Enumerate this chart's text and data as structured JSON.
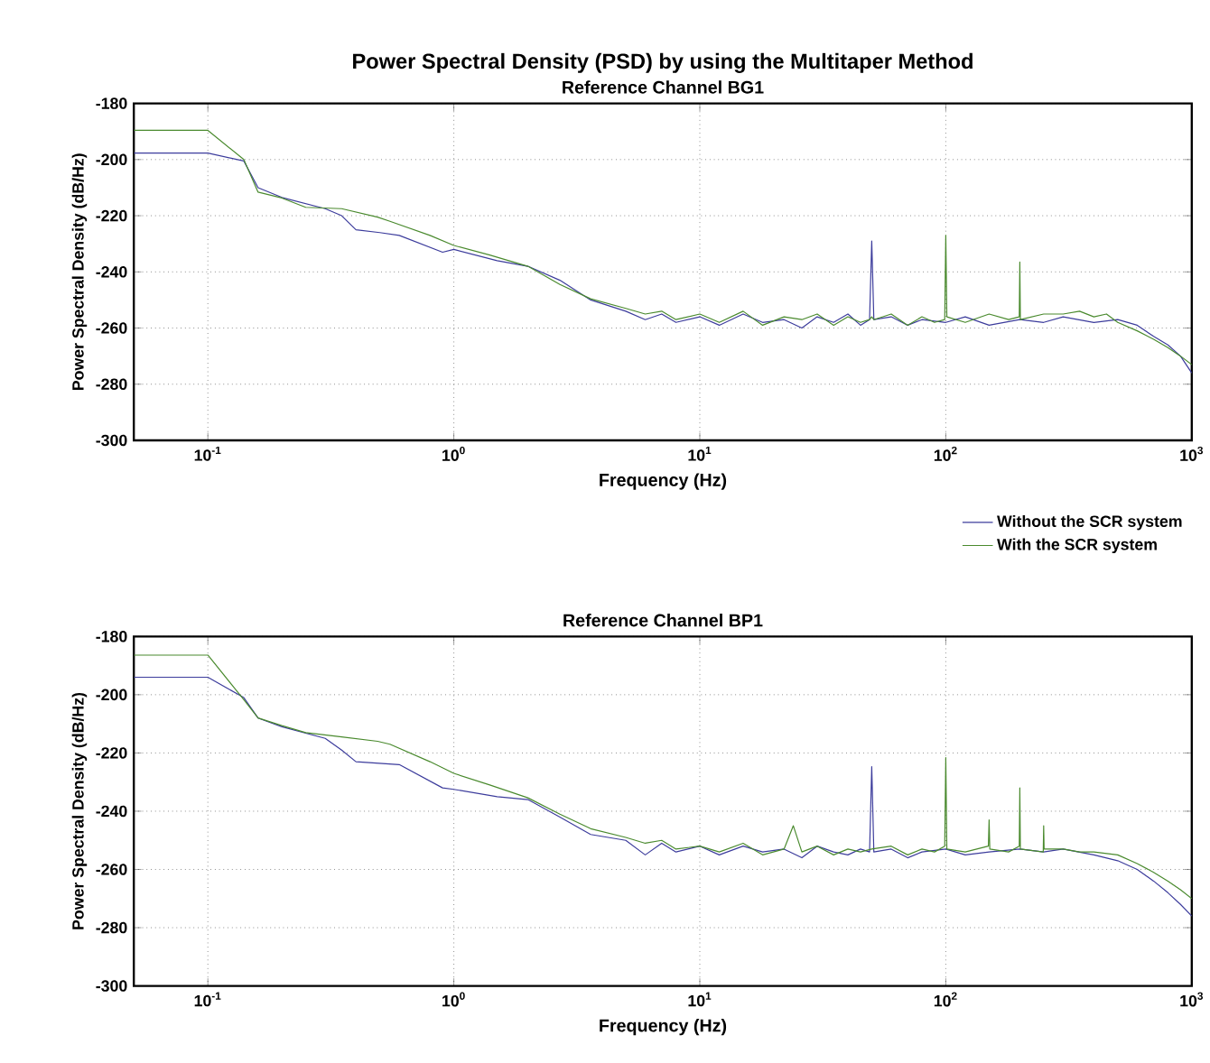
{
  "chart_data": [
    {
      "type": "line",
      "title": "Power Spectral Density (PSD) by using the Multitaper Method",
      "subtitle": "Reference Channel BG1",
      "xlabel": "Frequency (Hz)",
      "ylabel": "Power Spectral Density (dB/Hz)",
      "log": "x",
      "grid": true,
      "legend": "bottom right",
      "xlim": [
        0.05,
        1000
      ],
      "ylim": [
        -300,
        -180
      ],
      "xticks": [
        {
          "value": 0.1,
          "label": "10$^{-1}$"
        },
        {
          "value": 1,
          "label": "10$^{0}$"
        },
        {
          "value": 10,
          "label": "10$^{1}$"
        },
        {
          "value": 100,
          "label": "10$^{2}$"
        },
        {
          "value": 1000,
          "label": "10$^{3}$"
        }
      ],
      "yticks": [
        -300,
        -280,
        -260,
        -240,
        -220,
        -200,
        -180
      ],
      "series": [
        {
          "name": "Without the SCR system",
          "color": "#3c3c9c",
          "x": [
            0.05,
            0.1,
            0.14,
            0.16,
            0.2,
            0.3,
            0.35,
            0.4,
            0.5,
            0.6,
            0.9,
            1.0,
            1.5,
            2.0,
            2.7,
            3.6,
            5,
            6,
            7,
            8,
            10,
            12,
            15,
            18,
            22,
            26,
            30,
            35,
            40,
            45,
            49,
            50,
            51,
            60,
            70,
            80,
            100,
            120,
            150,
            200,
            250,
            300,
            400,
            500,
            600,
            700,
            800,
            900,
            1000
          ],
          "values": [
            -197.7,
            -197.7,
            -200.5,
            -210,
            -213.5,
            -217.5,
            -220,
            -225,
            -226,
            -227,
            -233,
            -232,
            -236,
            -238,
            -243,
            -250,
            -254,
            -257,
            -255,
            -258,
            -256,
            -259,
            -255,
            -258,
            -257,
            -260,
            -256,
            -258,
            -255,
            -259,
            -257,
            -229,
            -257,
            -256,
            -259,
            -257,
            -258,
            -256,
            -259,
            -257,
            -258,
            -256,
            -258,
            -257,
            -259,
            -263,
            -266,
            -270,
            -276
          ]
        },
        {
          "name": "With the SCR system",
          "color": "#4a8a2e",
          "x": [
            0.05,
            0.1,
            0.14,
            0.16,
            0.2,
            0.25,
            0.35,
            0.49,
            0.55,
            0.8,
            1.0,
            1.4,
            2.0,
            2.7,
            3.6,
            5,
            6,
            7,
            8,
            10,
            12,
            15,
            18,
            22,
            26,
            30,
            35,
            40,
            45,
            49,
            50,
            51,
            60,
            70,
            80,
            90,
            99,
            100,
            101,
            120,
            150,
            180,
            199,
            200,
            201,
            250,
            300,
            350,
            400,
            450,
            500,
            600,
            700,
            800,
            900,
            1000
          ],
          "values": [
            -189.6,
            -189.6,
            -200,
            -211.6,
            -213.7,
            -217,
            -217.5,
            -220.5,
            -222,
            -227,
            -230.6,
            -234,
            -238,
            -244.5,
            -249.6,
            -253,
            -255,
            -254,
            -257,
            -255,
            -258,
            -254,
            -259,
            -256,
            -257,
            -255,
            -259,
            -256,
            -258,
            -257,
            -256,
            -257,
            -255,
            -259,
            -256,
            -258,
            -257,
            -227,
            -256,
            -258,
            -255,
            -257,
            -256,
            -236.5,
            -257,
            -255,
            -255,
            -254,
            -256,
            -255,
            -258,
            -261,
            -264,
            -267,
            -270,
            -273
          ]
        }
      ]
    },
    {
      "type": "line",
      "title": "Reference Channel BP1",
      "xlabel": "Frequency (Hz)",
      "ylabel": "Power Spectral Density (dB/Hz)",
      "log": "x",
      "grid": true,
      "xlim": [
        0.05,
        1000
      ],
      "ylim": [
        -300,
        -180
      ],
      "xticks": [
        {
          "value": 0.1,
          "label": "10$^{-1}$"
        },
        {
          "value": 1,
          "label": "10$^{0}$"
        },
        {
          "value": 10,
          "label": "10$^{1}$"
        },
        {
          "value": 100,
          "label": "10$^{2}$"
        },
        {
          "value": 1000,
          "label": "10$^{3}$"
        }
      ],
      "yticks": [
        -300,
        -280,
        -260,
        -240,
        -220,
        -200,
        -180
      ],
      "series": [
        {
          "color": "#3c3c9c",
          "x": [
            0.05,
            0.1,
            0.14,
            0.16,
            0.2,
            0.3,
            0.35,
            0.4,
            0.6,
            0.9,
            1.0,
            1.5,
            2.0,
            2.7,
            3.6,
            5,
            6,
            7,
            8,
            10,
            12,
            15,
            18,
            22,
            26,
            30,
            35,
            40,
            45,
            49,
            50,
            51,
            60,
            70,
            80,
            100,
            120,
            150,
            200,
            250,
            300,
            400,
            500,
            600,
            700,
            800,
            900,
            1000
          ],
          "values": [
            -194,
            -194,
            -201,
            -208,
            -211,
            -215,
            -219,
            -223,
            -224,
            -232,
            -232.5,
            -235,
            -236,
            -242,
            -248,
            -250,
            -255,
            -251,
            -254,
            -252,
            -255,
            -252,
            -254,
            -253,
            -256,
            -252,
            -254,
            -255,
            -253,
            -254,
            -224.7,
            -254,
            -253,
            -256,
            -254,
            -253,
            -255,
            -254,
            -253,
            -254,
            -253,
            -255,
            -257,
            -260,
            -264,
            -268,
            -272,
            -276
          ]
        },
        {
          "color": "#4a8a2e",
          "x": [
            0.05,
            0.1,
            0.14,
            0.16,
            0.2,
            0.25,
            0.35,
            0.49,
            0.55,
            0.8,
            1.0,
            1.4,
            2.0,
            2.7,
            3.6,
            5,
            6,
            7,
            8,
            10,
            12,
            15,
            18,
            22,
            24,
            26,
            30,
            35,
            40,
            45,
            50,
            60,
            70,
            80,
            90,
            99,
            100,
            101,
            120,
            149,
            150,
            151,
            180,
            199,
            200,
            201,
            249,
            250,
            251,
            300,
            350,
            400,
            500,
            600,
            700,
            800,
            900,
            1000
          ],
          "values": [
            -186.4,
            -186.4,
            -201.7,
            -208,
            -210.6,
            -213,
            -214.5,
            -216,
            -217,
            -223,
            -227,
            -231,
            -235.4,
            -241,
            -246,
            -249,
            -251,
            -250,
            -253,
            -252,
            -254,
            -251,
            -255,
            -253,
            -245,
            -254,
            -252,
            -255,
            -253,
            -254,
            -253,
            -252,
            -255,
            -253,
            -254,
            -252,
            -221.6,
            -253,
            -254,
            -252,
            -243,
            -253,
            -254,
            -252,
            -232,
            -253,
            -254,
            -245,
            -253,
            -253,
            -254,
            -254,
            -255,
            -258,
            -261,
            -264,
            -267,
            -270
          ]
        }
      ]
    }
  ]
}
